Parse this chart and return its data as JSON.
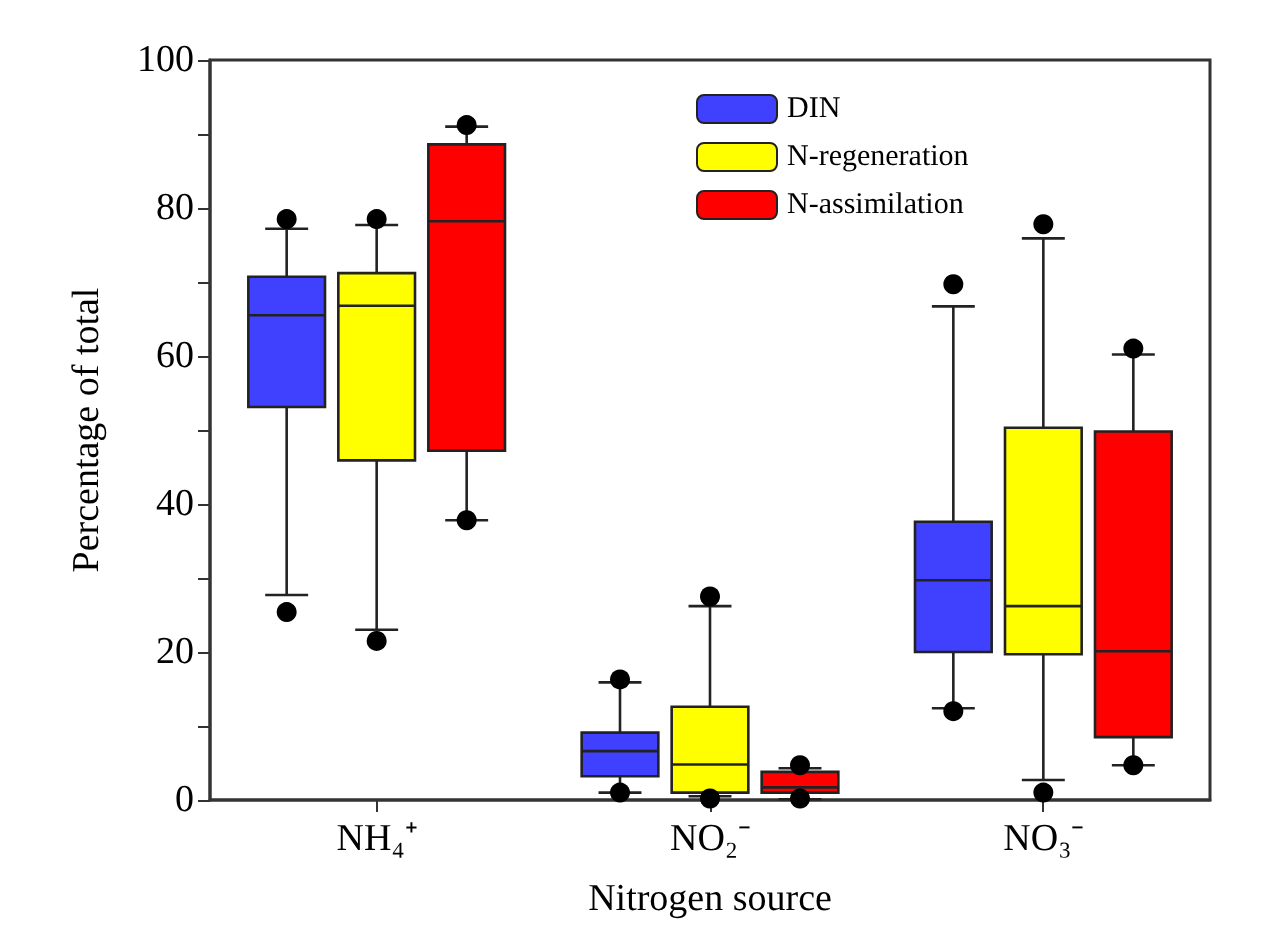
{
  "chart_data": {
    "type": "box",
    "xlabel": "Nitrogen source",
    "ylabel": "Percentage of total",
    "categories": [
      "NH₄⁺",
      "NO₂⁻",
      "NO₃⁻"
    ],
    "series": [
      {
        "name": "DIN",
        "color": "#4040ff",
        "boxes": [
          {
            "low": 27.7,
            "q1": 53.1,
            "median": 65.5,
            "q3": 70.7,
            "high": 77.2,
            "outliers": [
              25.4,
              78.5
            ]
          },
          {
            "low": 1.0,
            "q1": 3.2,
            "median": 6.6,
            "q3": 9.1,
            "high": 15.9,
            "outliers": [
              1.0,
              16.3
            ]
          },
          {
            "low": 12.4,
            "q1": 20.0,
            "median": 29.7,
            "q3": 37.6,
            "high": 66.7,
            "outliers": [
              12.0,
              69.7
            ]
          }
        ]
      },
      {
        "name": "N-regeneration",
        "color": "#ffff00",
        "boxes": [
          {
            "low": 23.0,
            "q1": 45.9,
            "median": 66.8,
            "q3": 71.2,
            "high": 77.7,
            "outliers": [
              21.5,
              78.5
            ]
          },
          {
            "low": 0.5,
            "q1": 1.0,
            "median": 4.8,
            "q3": 12.6,
            "high": 26.2,
            "outliers": [
              0.2,
              27.5
            ]
          },
          {
            "low": 2.7,
            "q1": 19.7,
            "median": 26.2,
            "q3": 50.3,
            "high": 75.9,
            "outliers": [
              1.0,
              77.8
            ]
          }
        ]
      },
      {
        "name": "N-assimilation",
        "color": "#ff0000",
        "boxes": [
          {
            "low": 37.8,
            "q1": 47.2,
            "median": 78.2,
            "q3": 88.6,
            "high": 91.0,
            "outliers": [
              37.8,
              91.2
            ]
          },
          {
            "low": 0.1,
            "q1": 1.0,
            "median": 1.7,
            "q3": 3.8,
            "high": 4.3,
            "outliers": [
              0.2,
              4.7
            ]
          },
          {
            "low": 4.7,
            "q1": 8.5,
            "median": 20.1,
            "q3": 49.8,
            "high": 60.2,
            "outliers": [
              4.7,
              61.0
            ]
          }
        ]
      }
    ],
    "ylim": [
      0,
      100
    ],
    "yticks": [
      0,
      {
        "value": 10,
        "label": null
      },
      20,
      {
        "value": 30,
        "label": null
      },
      40,
      {
        "value": 50,
        "label": null
      },
      60,
      {
        "value": 70,
        "label": null
      },
      80,
      {
        "value": 90,
        "label": null
      },
      100
    ],
    "legend": "top right",
    "grid": false
  }
}
